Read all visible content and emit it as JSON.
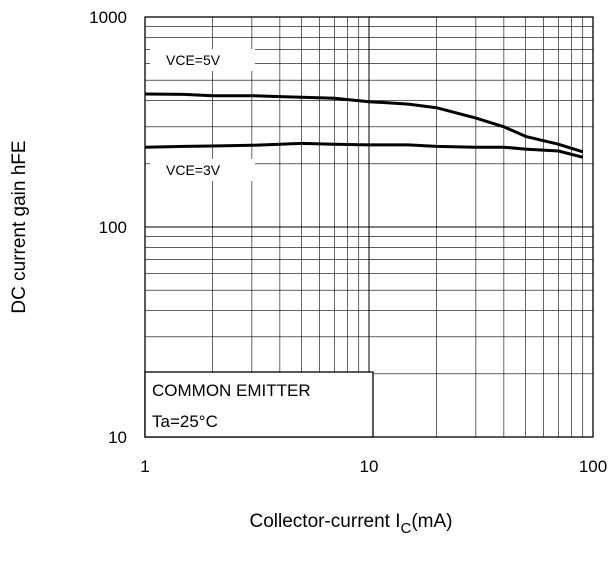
{
  "chart_data": {
    "type": "line",
    "xlabel": "Collector-current I",
    "xlabel_sub": "C",
    "xlabel_unit": "(mA)",
    "ylabel": "DC current gain hFE",
    "xscale": "log",
    "yscale": "log",
    "xlim": [
      1,
      100
    ],
    "ylim": [
      10,
      1000
    ],
    "xticks": [
      "1",
      "10",
      "100"
    ],
    "yticks": [
      "10",
      "100",
      "1000"
    ],
    "grid": true,
    "series": [
      {
        "name": "VCE=5V",
        "x": [
          1,
          1.5,
          2,
          3,
          4,
          5,
          7,
          10,
          15,
          20,
          30,
          40,
          50,
          70,
          90
        ],
        "y": [
          430,
          428,
          422,
          422,
          418,
          415,
          410,
          395,
          385,
          370,
          330,
          300,
          270,
          248,
          228
        ]
      },
      {
        "name": "VCE=3V",
        "x": [
          1,
          1.5,
          2,
          3,
          4,
          5,
          7,
          10,
          15,
          20,
          30,
          40,
          50,
          70,
          90
        ],
        "y": [
          240,
          242,
          243,
          245,
          248,
          250,
          248,
          246,
          246,
          242,
          240,
          240,
          235,
          230,
          215
        ]
      }
    ],
    "legend_box": {
      "line1": "COMMON EMITTER",
      "line2": "Ta=25°C"
    }
  }
}
